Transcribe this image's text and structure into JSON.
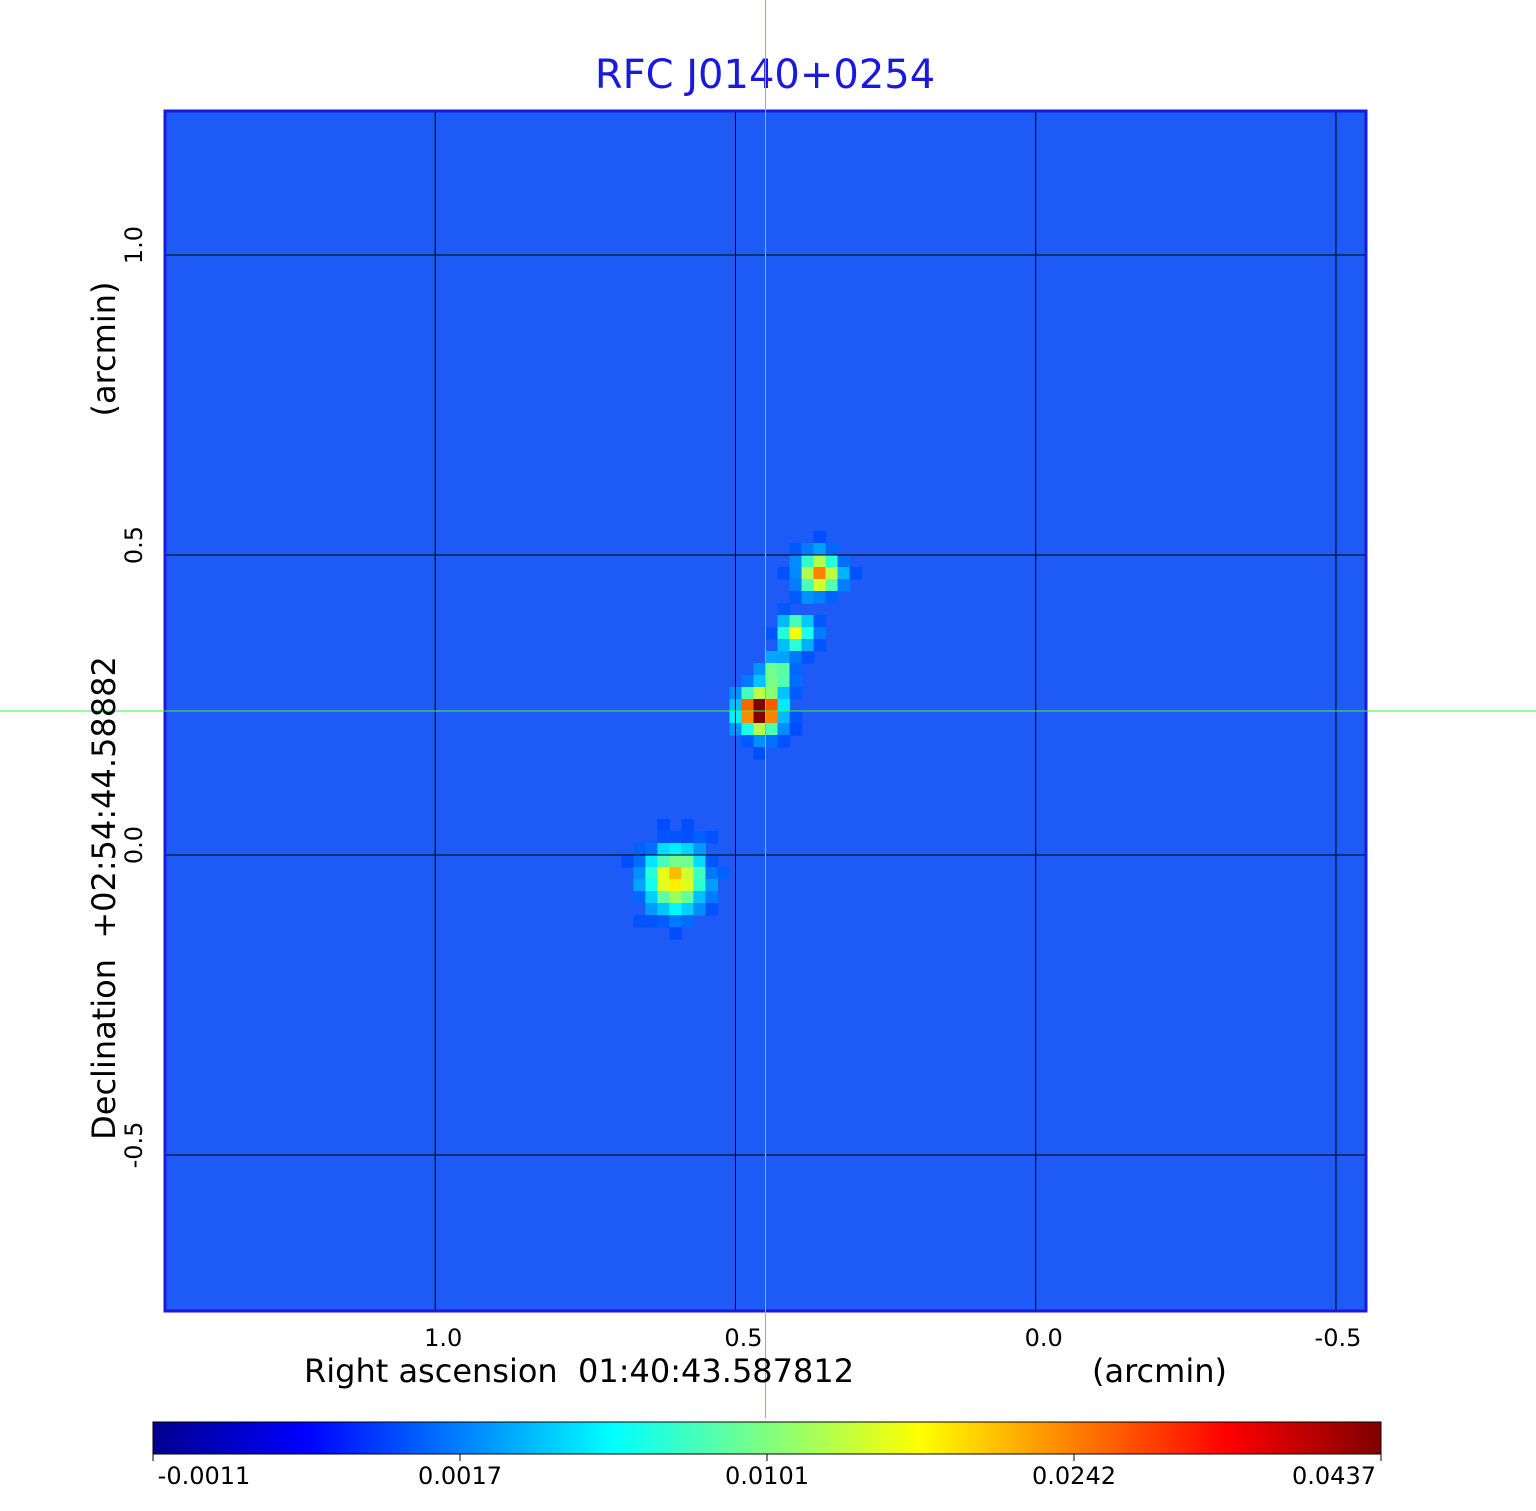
{
  "chart_data": {
    "type": "heatmap",
    "title": "RFC J0140+0254",
    "xlabel": "Right ascension  01:40:43.587812",
    "xunit": "(arcmin)",
    "ylabel": "Declination  +02:54:44.58882",
    "yunit": "(arcmin)",
    "xlim": [
      1.45,
      -0.55
    ],
    "ylim": [
      -0.76,
      1.24
    ],
    "xticks": [
      1.0,
      0.5,
      0.0,
      -0.5
    ],
    "xtick_labels": [
      "1.0",
      "0.5",
      "0.0",
      "-0.5"
    ],
    "yticks": [
      1.0,
      0.5,
      0.0,
      -0.5
    ],
    "ytick_labels": [
      "1.0",
      "0.5",
      "0.0",
      "-0.5"
    ],
    "grid": true,
    "crosshair": {
      "x": 0.45,
      "y": 0.24
    },
    "colormap": "jet",
    "colorbar": {
      "ticks": [
        -0.0011,
        0.0017,
        0.0101,
        0.0242,
        0.0437
      ],
      "tick_labels": [
        "-0.0011",
        "0.0017",
        "0.0101",
        "0.0242",
        "0.0437"
      ],
      "orientation": "horizontal",
      "placement": "bottom"
    },
    "features": [
      {
        "x": 0.46,
        "y": 0.24,
        "intensity": 1.0,
        "sigma": 0.022
      },
      {
        "x": 0.6,
        "y": -0.04,
        "intensity": 0.52,
        "sigma": 0.034
      },
      {
        "x": 0.36,
        "y": 0.47,
        "intensity": 0.6,
        "sigma": 0.022
      },
      {
        "x": 0.4,
        "y": 0.37,
        "intensity": 0.42,
        "sigma": 0.02
      },
      {
        "x": 0.43,
        "y": 0.3,
        "intensity": 0.4,
        "sigma": 0.018
      }
    ],
    "colors": {
      "frame": "#1a1adc",
      "grid": "#000000",
      "crosshair": "#33ff33",
      "title": "#1a1adc"
    }
  }
}
